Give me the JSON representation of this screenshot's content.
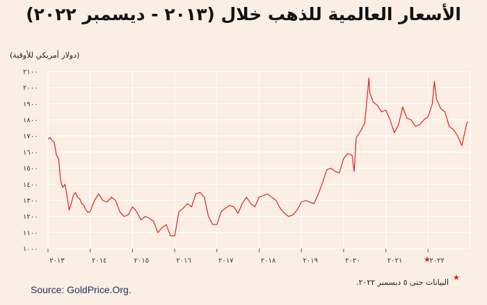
{
  "chart_data": {
    "type": "line",
    "title": "الأسعار العالمية للذهب خلال (٢٠١٣ - ديسمبر ٢٠٢٢)",
    "ylabel": "(دولار أمريكي للأوقية)",
    "xlabel": "",
    "ylim": [
      1000,
      2100
    ],
    "xlim": [
      2013.0,
      2023.0
    ],
    "y_ticks": [
      1000,
      1100,
      1200,
      1300,
      1400,
      1500,
      1600,
      1700,
      1800,
      1900,
      2000,
      2100
    ],
    "y_tick_labels": [
      "١٠٠٠",
      "١١٠٠",
      "١٢٠٠",
      "١٣٠٠",
      "١٤٠٠",
      "١٥٠٠",
      "١٦٠٠",
      "١٧٠٠",
      "١٨٠٠",
      "١٩٠٠",
      "٢٠٠٠",
      "٢١٠٠"
    ],
    "x_tick_labels": [
      "٢٠١٣",
      "٢٠١٤",
      "٢٠١٥",
      "٢٠١٦",
      "٢٠١٧",
      "٢٠١٨",
      "٢٠١٩",
      "٢٠٢٠",
      "٢٠٢١",
      "٢٠٢٢"
    ],
    "x_tick_label_years": [
      2013,
      2014,
      2015,
      2016,
      2017,
      2018,
      2019,
      2020,
      2021,
      2022
    ],
    "grid": true,
    "line_color": "#e02020",
    "x": [
      2013.0,
      2013.05,
      2013.1,
      2013.15,
      2013.2,
      2013.25,
      2013.3,
      2013.35,
      2013.4,
      2013.45,
      2013.5,
      2013.55,
      2013.6,
      2013.65,
      2013.7,
      2013.75,
      2013.8,
      2013.85,
      2013.9,
      2013.95,
      2014.0,
      2014.1,
      2014.2,
      2014.3,
      2014.4,
      2014.5,
      2014.6,
      2014.7,
      2014.8,
      2014.9,
      2015.0,
      2015.1,
      2015.2,
      2015.3,
      2015.4,
      2015.5,
      2015.6,
      2015.7,
      2015.8,
      2015.9,
      2016.0,
      2016.1,
      2016.2,
      2016.3,
      2016.4,
      2016.5,
      2016.6,
      2016.7,
      2016.8,
      2016.9,
      2017.0,
      2017.1,
      2017.2,
      2017.3,
      2017.4,
      2017.5,
      2017.6,
      2017.7,
      2017.8,
      2017.9,
      2018.0,
      2018.1,
      2018.2,
      2018.3,
      2018.4,
      2018.5,
      2018.6,
      2018.7,
      2018.8,
      2018.9,
      2019.0,
      2019.1,
      2019.2,
      2019.3,
      2019.4,
      2019.5,
      2019.6,
      2019.7,
      2019.8,
      2019.9,
      2020.0,
      2020.1,
      2020.2,
      2020.25,
      2020.3,
      2020.4,
      2020.5,
      2020.6,
      2020.62,
      2020.7,
      2020.8,
      2020.9,
      2021.0,
      2021.1,
      2021.2,
      2021.3,
      2021.4,
      2021.5,
      2021.6,
      2021.7,
      2021.8,
      2021.9,
      2022.0,
      2022.1,
      2022.15,
      2022.2,
      2022.3,
      2022.4,
      2022.5,
      2022.6,
      2022.7,
      2022.8,
      2022.9,
      2022.93
    ],
    "y": [
      1680,
      1690,
      1670,
      1660,
      1580,
      1560,
      1420,
      1380,
      1400,
      1330,
      1240,
      1280,
      1330,
      1350,
      1320,
      1310,
      1280,
      1270,
      1240,
      1225,
      1230,
      1300,
      1340,
      1300,
      1290,
      1320,
      1300,
      1230,
      1200,
      1210,
      1260,
      1230,
      1180,
      1200,
      1190,
      1170,
      1100,
      1130,
      1150,
      1080,
      1080,
      1230,
      1250,
      1280,
      1260,
      1340,
      1350,
      1320,
      1200,
      1150,
      1150,
      1230,
      1250,
      1270,
      1260,
      1220,
      1280,
      1320,
      1280,
      1260,
      1320,
      1330,
      1340,
      1320,
      1300,
      1250,
      1220,
      1200,
      1210,
      1240,
      1290,
      1300,
      1290,
      1280,
      1340,
      1410,
      1490,
      1500,
      1480,
      1470,
      1560,
      1590,
      1580,
      1480,
      1690,
      1730,
      1780,
      2060,
      1970,
      1910,
      1890,
      1850,
      1860,
      1800,
      1720,
      1770,
      1880,
      1810,
      1800,
      1760,
      1770,
      1800,
      1820,
      1900,
      2040,
      1930,
      1870,
      1850,
      1760,
      1740,
      1700,
      1640,
      1760,
      1790
    ]
  },
  "labels": {
    "source": "Source: GoldPrice.Org.",
    "note": "البيانات حتى ٥ ديسمبر ٢٠٢٢.",
    "star": "★"
  }
}
